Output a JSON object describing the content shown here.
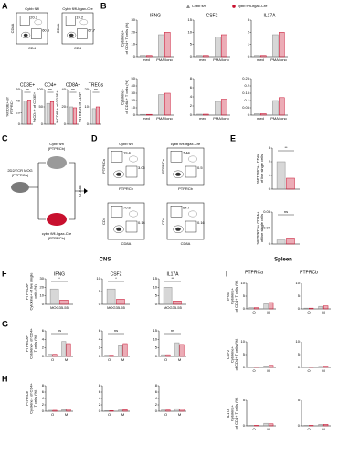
{
  "colors": [
    "#8c8c8c",
    "#c8102e"
  ],
  "legend": {
    "ctrl": "Cybb fl/fl",
    "cre": "cybb fl/fl-Itgax-Cre"
  },
  "panels": {
    "A": {
      "label": "A",
      "flow": [
        {
          "title": "Cybb fl/fl",
          "x": "CD4",
          "y": "CD8A",
          "gates": [
            "20.2",
            "60.5"
          ]
        },
        {
          "title": "Cybb fl/fl-Itgax-Cre",
          "x": "CD4",
          "y": "CD8A",
          "gates": [
            "19.2",
            "67.7"
          ]
        }
      ],
      "charts": [
        {
          "title": "CD3E+",
          "ylabel": [
            "%CD3E+ of",
            "PTPRC+"
          ],
          "categories": [
            null
          ],
          "ylim": [
            0,
            60
          ],
          "yticks": [
            0,
            20,
            40,
            60
          ],
          "values": [
            [
              40
            ],
            [
              42
            ]
          ],
          "sig": "ns"
        },
        {
          "title": "CD4+",
          "ylabel": [
            "%CD4+ of CD3E+"
          ],
          "categories": [
            null
          ],
          "ylim": [
            0,
            100
          ],
          "yticks": [
            0,
            50,
            100
          ],
          "values": [
            [
              60
            ],
            [
              65
            ]
          ],
          "sig": "ns"
        },
        {
          "title": "CD8A+",
          "ylabel": [
            "%CD8A+ of CD3E+"
          ],
          "categories": [
            null
          ],
          "ylim": [
            0,
            40
          ],
          "yticks": [
            0,
            20,
            40
          ],
          "values": [
            [
              20
            ],
            [
              19
            ]
          ],
          "sig": "ns"
        },
        {
          "title": "TREGs",
          "ylabel": [
            "%TREGs of CD4+"
          ],
          "categories": [
            null
          ],
          "ylim": [
            0,
            20
          ],
          "yticks": [
            0,
            10,
            20
          ],
          "values": [
            [
              9
            ],
            [
              10
            ]
          ],
          "sig": "ns"
        }
      ]
    },
    "B": {
      "label": "B",
      "charts": [
        {
          "title": "IFNG",
          "ylabel": [
            "Cytokine+",
            "of CD4+ T cells (%)"
          ],
          "categories": [
            "med",
            "PMA/Iono"
          ],
          "ylim": [
            0,
            30
          ],
          "yticks": [
            0,
            10,
            20,
            30
          ],
          "values": [
            [
              1,
              18
            ],
            [
              1,
              20
            ]
          ]
        },
        {
          "title": "CSF2",
          "categories": [
            "med",
            "PMA/Iono"
          ],
          "ylim": [
            0,
            15
          ],
          "yticks": [
            0,
            5,
            10,
            15
          ],
          "values": [
            [
              0.5,
              8
            ],
            [
              0.5,
              9
            ]
          ]
        },
        {
          "title": "IL17A",
          "categories": [
            "med",
            "PMA/Iono"
          ],
          "ylim": [
            0,
            3
          ],
          "yticks": [
            0,
            1,
            2,
            3
          ],
          "values": [
            [
              0.1,
              1.8
            ],
            [
              0.1,
              2
            ]
          ]
        },
        {
          "ylabel": [
            "Cytokine+",
            "of CD8A+ T cells (%)"
          ],
          "categories": [
            "med",
            "PMA/Iono"
          ],
          "ylim": [
            0,
            50
          ],
          "yticks": [
            0,
            10,
            20,
            30,
            40,
            50
          ],
          "values": [
            [
              1,
              28
            ],
            [
              1,
              30
            ]
          ]
        },
        {
          "categories": [
            "med",
            "PMA/Iono"
          ],
          "ylim": [
            0,
            8
          ],
          "yticks": [
            0,
            2,
            4,
            6,
            8
          ],
          "values": [
            [
              0.2,
              3
            ],
            [
              0.2,
              3.5
            ]
          ]
        },
        {
          "categories": [
            "med",
            "PMA/Iono"
          ],
          "ylim": [
            0,
            0.25
          ],
          "yticks": [
            0,
            0.05,
            0.1,
            0.15,
            0.2,
            0.25
          ],
          "values": [
            [
              0.01,
              0.1
            ],
            [
              0.01,
              0.12
            ]
          ]
        }
      ]
    },
    "C": {
      "label": "C",
      "donor": "2D2/TCR MOG",
      "donor_sub": "(PTPRCa)",
      "mouse1": "Cybb fl/fl",
      "mouse1_sub": "(PTPRCb)",
      "mouse2": "cybb fl/fl-Itgax-Cre",
      "mouse2_sub": "(PTPRCb)",
      "arrow": "AT-EAE"
    },
    "D": {
      "label": "D",
      "flow": [
        {
          "title": "Cybb fl/fl",
          "x": "PTPRCb",
          "y": "PTPRCa",
          "gates": [
            "19.4",
            "3.05"
          ]
        },
        {
          "title": "cybb fl/fl-Itgax-Cre",
          "x": "PTPRCb",
          "y": "PTPRCa",
          "gates": [
            "7.44",
            "0.5"
          ]
        },
        {
          "x": "CD8A",
          "y": "CD4",
          "gates": [
            "70.8",
            "0.14"
          ]
        },
        {
          "x": "CD8A",
          "y": "CD4",
          "gates": [
            "64.7",
            "0.16"
          ]
        }
      ]
    },
    "E": {
      "label": "E",
      "charts": [
        {
          "ylabel": [
            "%PTPRCa+ CD4+",
            "of live single cells"
          ],
          "categories": [
            null
          ],
          "ylim": [
            0,
            3
          ],
          "yticks": [
            0,
            1,
            2,
            3
          ],
          "values": [
            [
              2
            ],
            [
              0.8
            ]
          ],
          "sig": "**"
        },
        {
          "ylabel": [
            "%PTPRCa+ CD8A+",
            "of live single cells"
          ],
          "categories": [
            null
          ],
          "ylim": [
            0,
            0.08
          ],
          "yticks": [
            0,
            0.04,
            0.08
          ],
          "values": [
            [
              0.01
            ],
            [
              0.015
            ]
          ],
          "sig": "ns"
        }
      ]
    },
    "F": {
      "label": "F",
      "section": "CNS",
      "charts": [
        {
          "title": "IFNG",
          "ylabel": [
            "PTPRCa+",
            "Cytokine+ of live single",
            "cells (%)"
          ],
          "categories": [
            "MOG35-55"
          ],
          "ylim": [
            0,
            30
          ],
          "yticks": [
            0,
            10,
            20,
            30
          ],
          "values": [
            [
              18
            ],
            [
              5
            ]
          ],
          "sig": "*"
        },
        {
          "title": "CSF2",
          "categories": [
            "MOG35-55"
          ],
          "ylim": [
            0,
            10
          ],
          "yticks": [
            0,
            5,
            10
          ],
          "values": [
            [
              6
            ],
            [
              2
            ]
          ],
          "sig": "*"
        },
        {
          "title": "IL17A",
          "categories": [
            "MOG35-55"
          ],
          "ylim": [
            0,
            15
          ],
          "yticks": [
            0,
            5,
            10,
            15
          ],
          "values": [
            [
              10
            ],
            [
              2
            ]
          ],
          "sig": "**"
        }
      ]
    },
    "G": {
      "label": "G",
      "charts": [
        {
          "ylabel": [
            "PTPRCa+",
            "Cytokine+ of CD4+",
            "T cells (%)"
          ],
          "categories": [
            "O",
            "M"
          ],
          "ylim": [
            0,
            6
          ],
          "yticks": [
            0,
            2,
            4,
            6
          ],
          "values": [
            [
              0.5,
              3.5
            ],
            [
              0.5,
              3
            ]
          ],
          "sig": "ns"
        },
        {
          "categories": [
            "O",
            "M"
          ],
          "ylim": [
            0,
            6
          ],
          "yticks": [
            0,
            2,
            4,
            6
          ],
          "values": [
            [
              0.3,
              2.5
            ],
            [
              0.3,
              3
            ]
          ],
          "sig": "ns"
        },
        {
          "categories": [
            "O",
            "M"
          ],
          "ylim": [
            0,
            15
          ],
          "yticks": [
            0,
            5,
            10,
            15
          ],
          "values": [
            [
              1,
              8
            ],
            [
              1,
              7
            ]
          ],
          "sig": "ns"
        }
      ]
    },
    "H": {
      "label": "H",
      "charts": [
        {
          "ylabel": [
            "PTPRCb",
            "Cytokine+ of CD4+",
            "T cells (%)"
          ],
          "categories": [
            "O",
            "M"
          ],
          "ylim": [
            0,
            8
          ],
          "yticks": [
            0,
            2,
            4,
            6,
            8
          ],
          "values": [
            [
              0.3,
              0.5
            ],
            [
              0.3,
              0.6
            ]
          ]
        },
        {
          "categories": [
            "O",
            "M"
          ],
          "ylim": [
            0,
            8
          ],
          "yticks": [
            0,
            2,
            4,
            6,
            8
          ],
          "values": [
            [
              0.2,
              0.4
            ],
            [
              0.2,
              0.5
            ]
          ]
        },
        {
          "categories": [
            "O",
            "M"
          ],
          "ylim": [
            0,
            8
          ],
          "yticks": [
            0,
            2,
            4,
            6,
            8
          ],
          "values": [
            [
              0.4,
              0.8
            ],
            [
              0.4,
              0.7
            ]
          ]
        }
      ]
    },
    "I": {
      "label": "I",
      "section": "Spleen",
      "cols": [
        "PTPRCa",
        "PTPRCb"
      ],
      "charts": [
        {
          "ylabel": [
            "IFNG",
            "Cytokine+",
            "of CD4+ T cells (%)"
          ],
          "categories": [
            "O",
            "M"
          ],
          "ylim": [
            0,
            10
          ],
          "yticks": [
            0,
            5,
            10
          ],
          "values": [
            [
              0.5,
              2
            ],
            [
              0.5,
              2.5
            ]
          ]
        },
        {
          "categories": [
            "O",
            "M"
          ],
          "ylim": [
            0,
            10
          ],
          "yticks": [
            0,
            5,
            10
          ],
          "values": [
            [
              0.3,
              1
            ],
            [
              0.3,
              1.2
            ]
          ]
        },
        {
          "ylabel": [
            "CSF2",
            "Cytokine+",
            "of CD4+ T cells (%)"
          ],
          "categories": [
            "O",
            "M"
          ],
          "ylim": [
            0,
            10
          ],
          "yticks": [
            0,
            5,
            10
          ],
          "values": [
            [
              0.2,
              0.6
            ],
            [
              0.2,
              0.8
            ]
          ]
        },
        {
          "categories": [
            "O",
            "M"
          ],
          "ylim": [
            0,
            10
          ],
          "yticks": [
            0,
            5,
            10
          ],
          "values": [
            [
              0.2,
              0.4
            ],
            [
              0.2,
              0.5
            ]
          ]
        },
        {
          "ylabel": [
            "IL17A",
            "Cytokine+",
            "of CD4+ T cells (%)"
          ],
          "categories": [
            "O",
            "M"
          ],
          "ylim": [
            0,
            5
          ],
          "yticks": [
            0,
            5
          ],
          "values": [
            [
              0.1,
              0.5
            ],
            [
              0.1,
              0.4
            ]
          ]
        },
        {
          "categories": [
            "O",
            "M"
          ],
          "ylim": [
            0,
            5
          ],
          "yticks": [
            0,
            5
          ],
          "values": [
            [
              0.1,
              0.3
            ],
            [
              0.1,
              0.3
            ]
          ]
        }
      ]
    }
  }
}
